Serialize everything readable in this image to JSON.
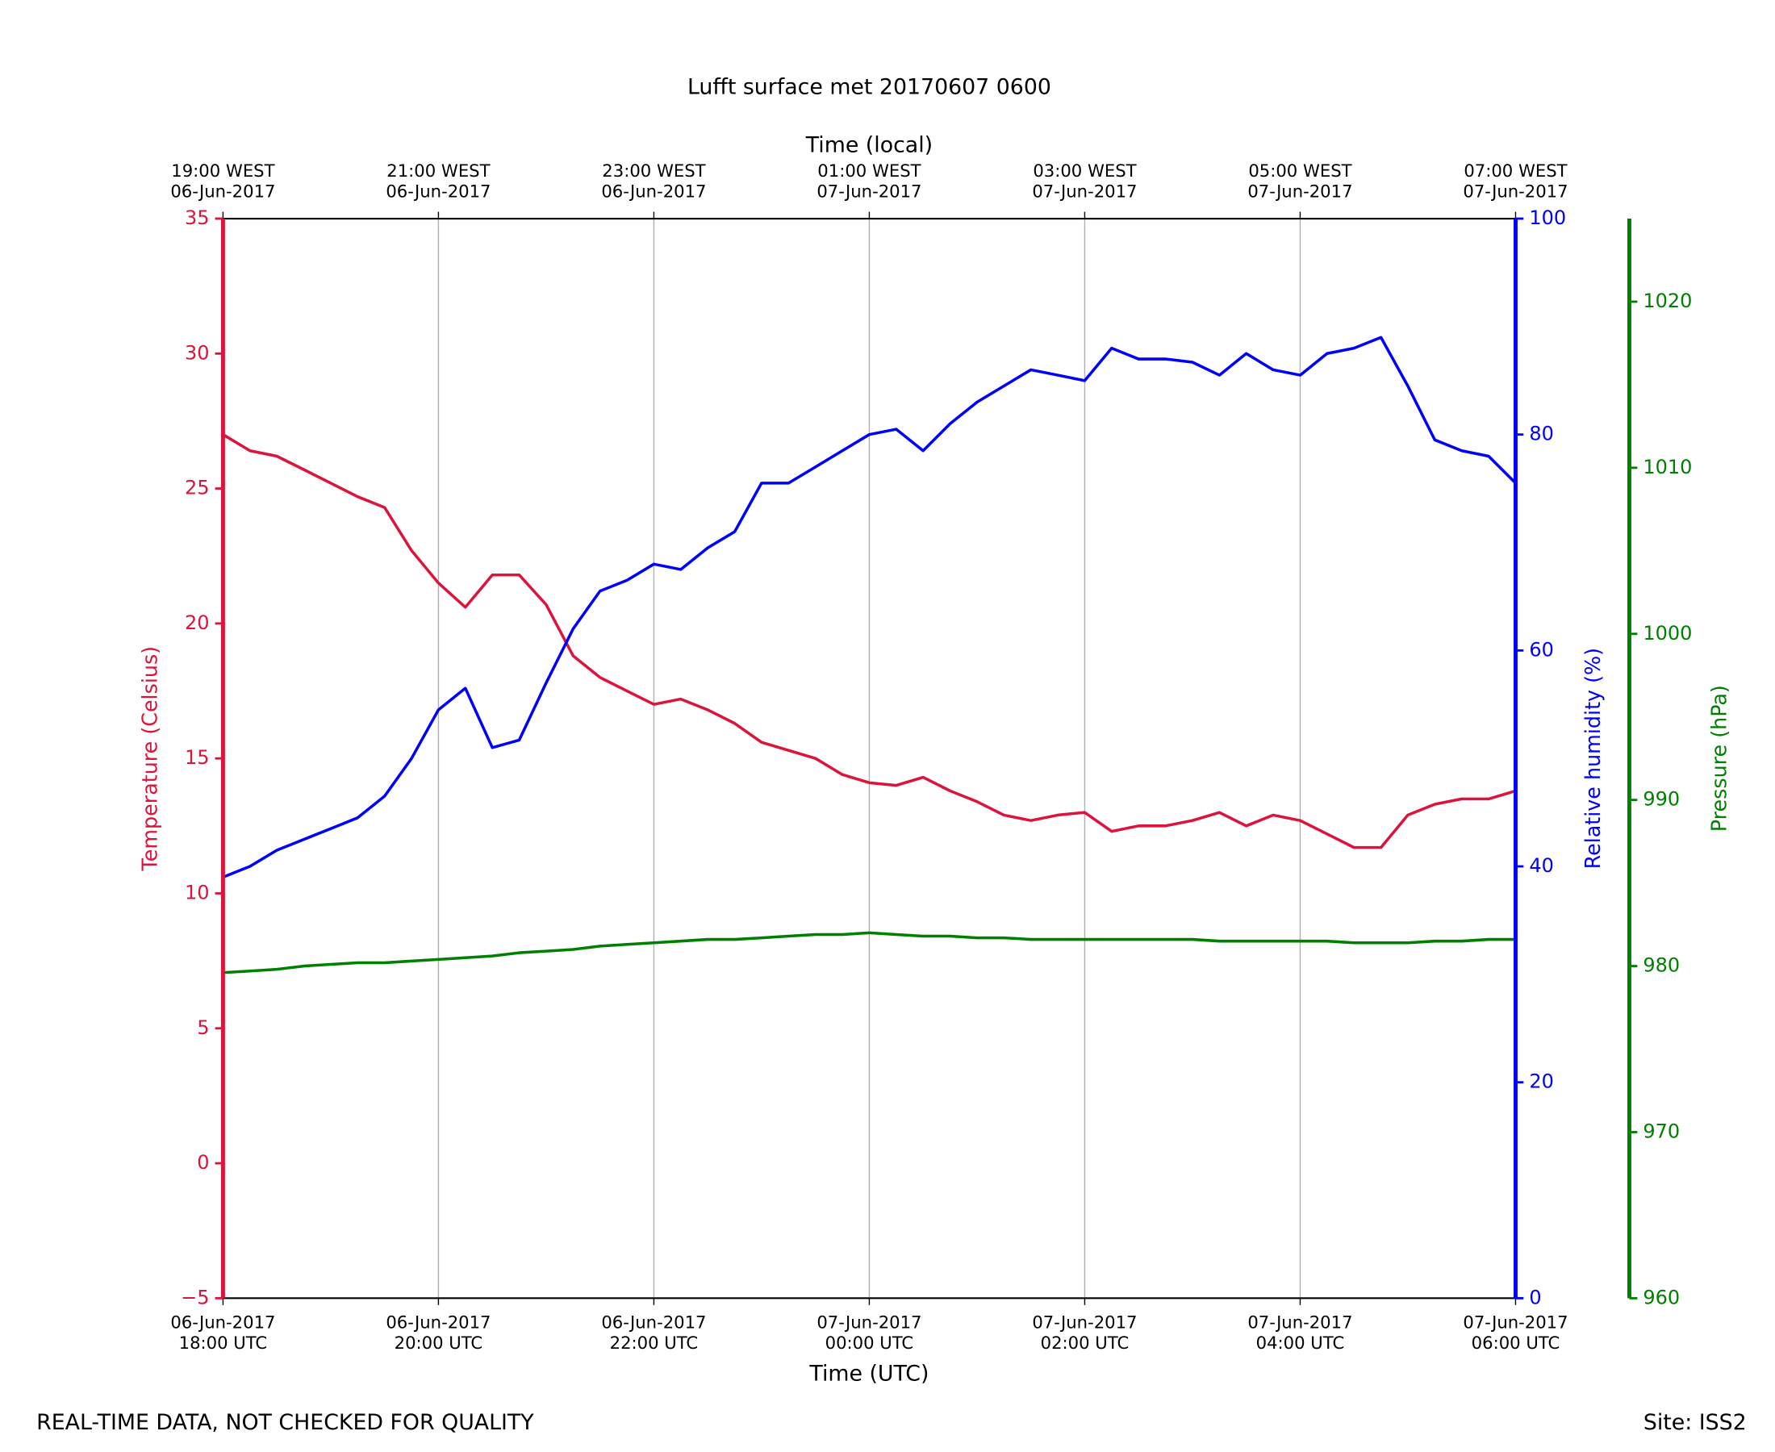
{
  "chart_data": {
    "type": "line",
    "title": "Lufft surface met 20170607 0600",
    "x_label": "Time (UTC)",
    "x2_label": "Time (local)",
    "y_label": "Temperature (Celsius)",
    "y2_label": "Relative humidity (%)",
    "y3_label": "Pressure (hPa)",
    "footer_left": "REAL-TIME DATA, NOT CHECKED FOR QUALITY",
    "footer_right": "Site: ISS2",
    "grid": true,
    "x": [
      0,
      0.25,
      0.5,
      0.75,
      1,
      1.25,
      1.5,
      1.75,
      2,
      2.25,
      2.5,
      2.75,
      3,
      3.25,
      3.5,
      3.75,
      4,
      4.25,
      4.5,
      4.75,
      5,
      5.25,
      5.5,
      5.75,
      6,
      6.25,
      6.5,
      6.75,
      7,
      7.25,
      7.5,
      7.75,
      8,
      8.25,
      8.5,
      8.75,
      9,
      9.25,
      9.5,
      9.75,
      10,
      10.25,
      10.5,
      10.75,
      11,
      11.25,
      11.5,
      11.75,
      12
    ],
    "xlim": [
      0,
      12
    ],
    "xticks": [
      {
        "value": 0,
        "label": [
          "06-Jun-2017",
          "18:00 UTC"
        ]
      },
      {
        "value": 2,
        "label": [
          "06-Jun-2017",
          "20:00 UTC"
        ]
      },
      {
        "value": 4,
        "label": [
          "06-Jun-2017",
          "22:00 UTC"
        ]
      },
      {
        "value": 6,
        "label": [
          "07-Jun-2017",
          "00:00 UTC"
        ]
      },
      {
        "value": 8,
        "label": [
          "07-Jun-2017",
          "02:00 UTC"
        ]
      },
      {
        "value": 10,
        "label": [
          "07-Jun-2017",
          "04:00 UTC"
        ]
      },
      {
        "value": 12,
        "label": [
          "07-Jun-2017",
          "06:00 UTC"
        ]
      }
    ],
    "x2ticks": [
      {
        "value": 0,
        "label": [
          "19:00 WEST",
          "06-Jun-2017"
        ]
      },
      {
        "value": 2,
        "label": [
          "21:00 WEST",
          "06-Jun-2017"
        ]
      },
      {
        "value": 4,
        "label": [
          "23:00 WEST",
          "06-Jun-2017"
        ]
      },
      {
        "value": 6,
        "label": [
          "01:00 WEST",
          "07-Jun-2017"
        ]
      },
      {
        "value": 8,
        "label": [
          "03:00 WEST",
          "07-Jun-2017"
        ]
      },
      {
        "value": 10,
        "label": [
          "05:00 WEST",
          "07-Jun-2017"
        ]
      },
      {
        "value": 12,
        "label": [
          "07:00 WEST",
          "07-Jun-2017"
        ]
      }
    ],
    "ylim": [
      -5,
      35
    ],
    "yticks": [
      {
        "value": -5,
        "label": "−5"
      },
      0,
      5,
      10,
      15,
      20,
      25,
      30,
      35
    ],
    "y2lim": [
      0,
      100
    ],
    "y2ticks": [
      0,
      20,
      40,
      60,
      80,
      100
    ],
    "y3lim": [
      960,
      1025
    ],
    "y3ticks": [
      960,
      970,
      980,
      990,
      1000,
      1010,
      1020
    ],
    "axis_colors": {
      "y": "#dc143c",
      "y2": "#0000ff",
      "y3": "#008000"
    },
    "series": [
      {
        "name": "Temperature",
        "axis": "y",
        "color": "#dc143c",
        "values": [
          27.0,
          26.4,
          26.2,
          25.7,
          25.2,
          24.7,
          24.3,
          22.7,
          21.5,
          20.6,
          21.8,
          21.8,
          20.7,
          18.8,
          18.0,
          17.5,
          17.0,
          17.2,
          16.8,
          16.3,
          15.6,
          15.3,
          15.0,
          14.4,
          14.1,
          14.0,
          14.3,
          13.8,
          13.4,
          12.9,
          12.7,
          12.9,
          13.0,
          12.3,
          12.5,
          12.5,
          12.7,
          13.0,
          12.5,
          12.9,
          12.7,
          12.2,
          11.7,
          11.7,
          12.9,
          13.3,
          13.5,
          13.5,
          13.8
        ]
      },
      {
        "name": "Relative humidity",
        "axis": "y2",
        "color": "#0000ff",
        "values": [
          39,
          40,
          41.5,
          42.5,
          43.5,
          44.5,
          46.5,
          50,
          54.5,
          56.5,
          51,
          51.7,
          57,
          62,
          65.5,
          66.5,
          68,
          67.5,
          69.5,
          71,
          75.5,
          75.5,
          77,
          78.5,
          80,
          80.5,
          78.5,
          81,
          83,
          84.5,
          86,
          85.5,
          85,
          88,
          87,
          87,
          86.7,
          85.5,
          87.5,
          86,
          85.5,
          87.5,
          88,
          89,
          84.5,
          79.5,
          78.5,
          78,
          75.5
        ]
      },
      {
        "name": "Pressure",
        "axis": "y3",
        "color": "#008000",
        "values": [
          979.6,
          979.7,
          979.8,
          980.0,
          980.1,
          980.2,
          980.2,
          980.3,
          980.4,
          980.5,
          980.6,
          980.8,
          980.9,
          981.0,
          981.2,
          981.3,
          981.4,
          981.5,
          981.6,
          981.6,
          981.7,
          981.8,
          981.9,
          981.9,
          982.0,
          981.9,
          981.8,
          981.8,
          981.7,
          981.7,
          981.6,
          981.6,
          981.6,
          981.6,
          981.6,
          981.6,
          981.6,
          981.5,
          981.5,
          981.5,
          981.5,
          981.5,
          981.4,
          981.4,
          981.4,
          981.5,
          981.5,
          981.6,
          981.6
        ]
      }
    ]
  }
}
